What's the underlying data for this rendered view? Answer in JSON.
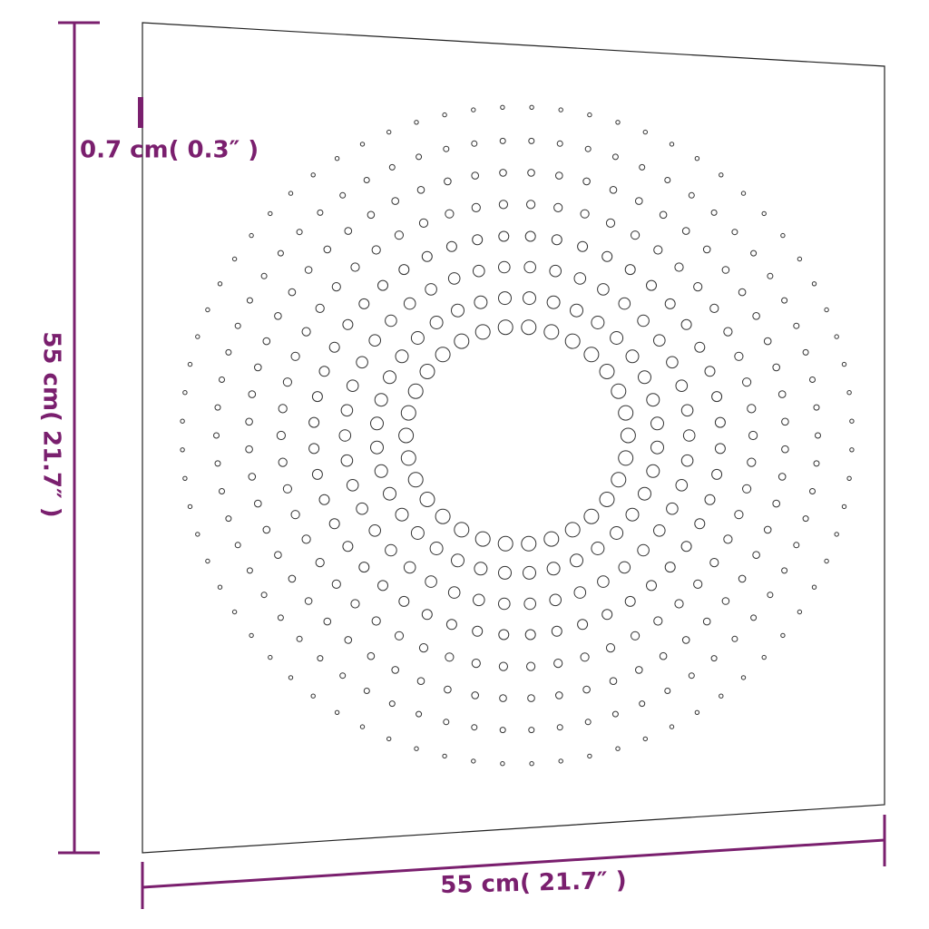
{
  "dimensions": {
    "thickness": "0.7 cm( 0.3″ )",
    "height": "55 cm( 21.7″ )",
    "width": "55 cm( 21.7″ )"
  }
}
